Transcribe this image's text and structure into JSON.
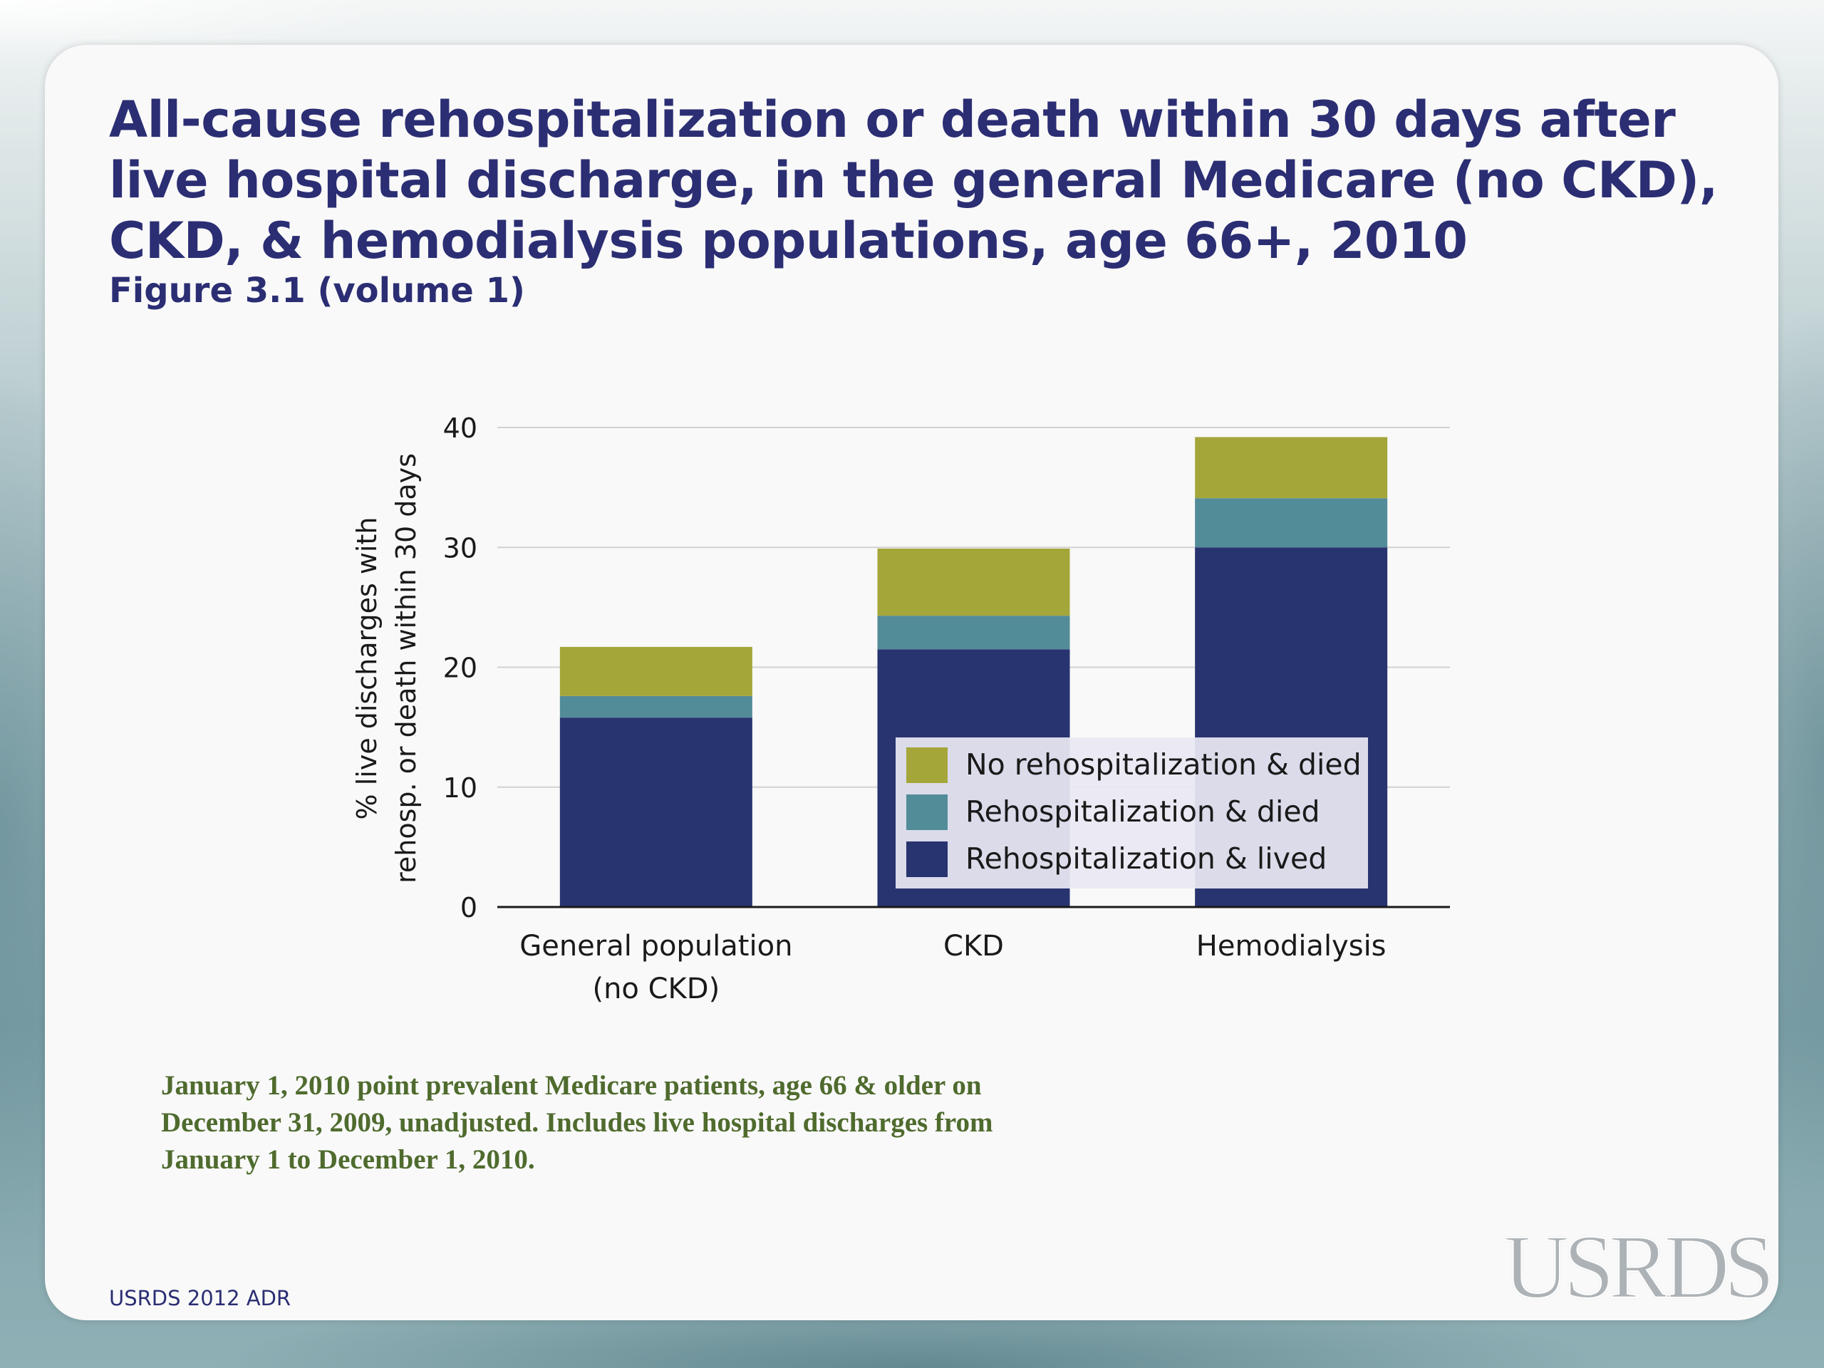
{
  "slide": {
    "title": "All-cause rehospitalization or death within 30 days after live hospital discharge, in the general Medicare (no CKD), CKD, & hemodialysis populations, age 66+, 2010",
    "subtitle": "Figure 3.1 (volume 1)",
    "note": "January 1, 2010 point prevalent Medicare patients, age 66 & older on December 31, 2009, unadjusted. Includes live hospital discharges from January 1 to December 1, 2010.",
    "source": "USRDS 2012 ADR",
    "logo_text": "USRDS"
  },
  "chart_data": {
    "type": "bar",
    "stacked": true,
    "categories": [
      [
        "General population",
        "(no CKD)"
      ],
      [
        "CKD"
      ],
      [
        "Hemodialysis"
      ]
    ],
    "series": [
      {
        "name": "Rehospitalization & lived",
        "color": "#283470",
        "values": [
          15.8,
          21.5,
          30.0
        ]
      },
      {
        "name": "Rehospitalization & died",
        "color": "#538c99",
        "values": [
          1.8,
          2.8,
          4.1
        ]
      },
      {
        "name": "No rehospitalization & died",
        "color": "#a5a63a",
        "values": [
          4.1,
          5.6,
          5.1
        ]
      }
    ],
    "ylabel": [
      "% live discharges with",
      "rehosp. or death within 30 days"
    ],
    "ylim": [
      0,
      40
    ],
    "yticks": [
      0,
      10,
      20,
      30,
      40
    ],
    "grid": true,
    "legend_position": "inside lower-right",
    "legend_order": [
      "No rehospitalization & died",
      "Rehospitalization & died",
      "Rehospitalization & lived"
    ]
  }
}
